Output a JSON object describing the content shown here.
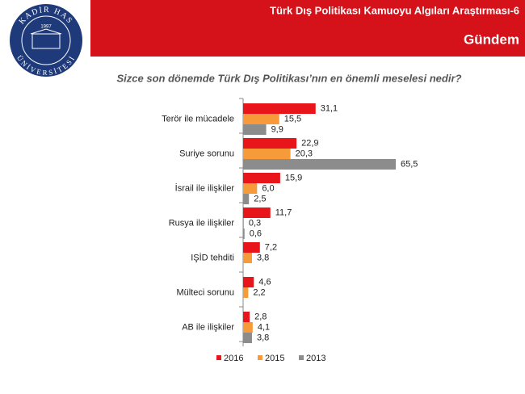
{
  "header": {
    "title": "Türk Dış Politikası Kamuoyu Algıları Araştırması-6",
    "section": "Gündem"
  },
  "logo": {
    "top": "KADİR HAS",
    "year": "1997",
    "bottom": "ÜNİVERSİTESİ"
  },
  "chart_data": {
    "type": "bar",
    "orientation": "horizontal",
    "title": "Sizce son dönemde Türk Dış Politikası’nın en önemli meselesi nedir?",
    "categories": [
      "Terör ile mücadele",
      "Suriye sorunu",
      "İsrail ile ilişkiler",
      "Rusya ile ilişkiler",
      "IŞİD tehditi",
      "Mülteci sorunu",
      "AB ile ilişkiler"
    ],
    "series": [
      {
        "name": "2016",
        "color": "#e8151b",
        "values": [
          31.1,
          22.9,
          15.9,
          11.7,
          7.2,
          4.6,
          2.8
        ],
        "value_labels": [
          "31,1",
          "22,9",
          "15,9",
          "11,7",
          "7,2",
          "4,6",
          "2,8"
        ]
      },
      {
        "name": "2015",
        "color": "#f79a3a",
        "values": [
          15.5,
          20.3,
          6.0,
          0.3,
          3.8,
          2.2,
          4.1
        ],
        "value_labels": [
          "15,5",
          "20,3",
          "6,0",
          "0,3",
          "3,8",
          "2,2",
          "4,1"
        ]
      },
      {
        "name": "2013",
        "color": "#8c8c8c",
        "values": [
          9.9,
          65.5,
          2.5,
          0.6,
          null,
          null,
          3.8
        ],
        "value_labels": [
          "9,9",
          "65,5",
          "2,5",
          "0,6",
          null,
          null,
          "3,8"
        ]
      }
    ],
    "xlim": [
      0,
      70
    ],
    "legend": "bottom"
  }
}
